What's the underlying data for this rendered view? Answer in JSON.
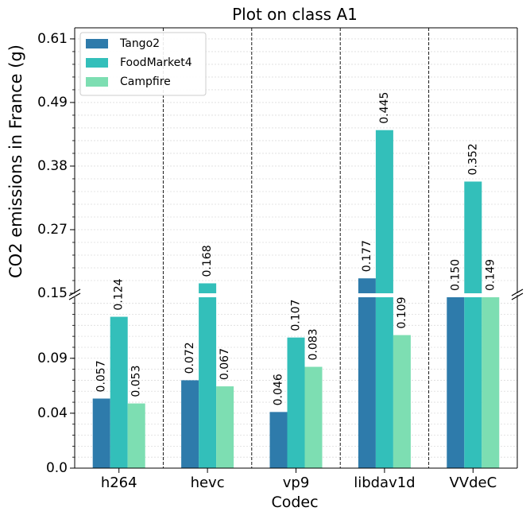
{
  "chart_data": {
    "type": "bar",
    "title": "Plot on class A1",
    "xlabel": "Codec",
    "ylabel": "CO2 emissions in France (g)",
    "categories": [
      "h264",
      "hevc",
      "vp9",
      "libdav1d",
      "VVdeC"
    ],
    "series": [
      {
        "name": "Tango2",
        "values": [
          0.057,
          0.072,
          0.046,
          0.177,
          0.15
        ],
        "labels": [
          "0.057",
          "0.072",
          "0.046",
          "0.177",
          "0.150"
        ],
        "color": "#2e7bab"
      },
      {
        "name": "FoodMarket4",
        "values": [
          0.124,
          0.168,
          0.107,
          0.445,
          0.352
        ],
        "labels": [
          "0.124",
          "0.168",
          "0.107",
          "0.445",
          "0.352"
        ],
        "color": "#33bfba"
      },
      {
        "name": "Campfire",
        "values": [
          0.053,
          0.067,
          0.083,
          0.109,
          0.149
        ],
        "labels": [
          "0.053",
          "0.067",
          "0.083",
          "0.109",
          "0.149"
        ],
        "color": "#7ddeb2"
      }
    ],
    "y_axis": "broken",
    "ylim_lower": [
      0.0,
      0.14
    ],
    "ylim_upper": [
      0.15,
      0.63
    ],
    "yticks_lower": [
      "0.0",
      "0.04",
      "0.09"
    ],
    "yticks_upper": [
      "0.15",
      "0.27",
      "0.38",
      "0.49",
      "0.61"
    ],
    "ytick_values_lower": [
      0.0,
      0.045,
      0.09
    ],
    "ytick_values_upper": [
      0.15,
      0.265,
      0.38,
      0.495,
      0.61
    ],
    "grid": true,
    "legend_position": "top-left"
  }
}
